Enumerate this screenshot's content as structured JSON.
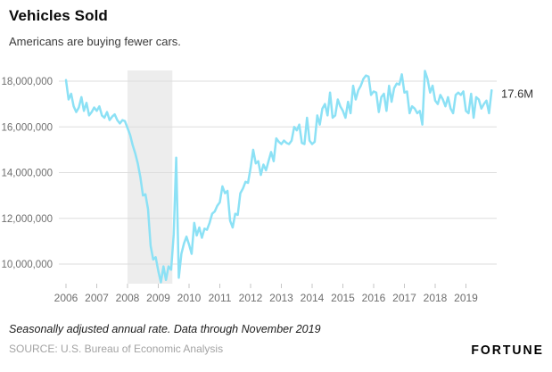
{
  "header": {
    "title": "Vehicles Sold",
    "subtitle": "Americans are buying fewer cars."
  },
  "footer": {
    "note": "Seasonally adjusted annual rate. Data through November 2019",
    "source": "SOURCE: U.S. Bureau of Economic Analysis",
    "brand": "FORTUNE"
  },
  "chart_data": {
    "type": "line",
    "title": "Vehicles Sold",
    "subtitle": "Americans are buying fewer cars.",
    "unit": "vehicles per year, seasonally adjusted annual rate",
    "x_start": "2006-01",
    "x_end": "2019-11",
    "x_tick_years": [
      2006,
      2007,
      2008,
      2009,
      2010,
      2011,
      2012,
      2013,
      2014,
      2015,
      2016,
      2017,
      2018,
      2019
    ],
    "y_ticks": [
      {
        "value": 18,
        "label": "18,000,000"
      },
      {
        "value": 16,
        "label": "16,000,000"
      },
      {
        "value": 14,
        "label": "14,000,000"
      },
      {
        "value": 12,
        "label": "12,000,000"
      },
      {
        "value": 10,
        "label": "10,000,000"
      }
    ],
    "ylim": [
      9.1,
      18.6
    ],
    "grid": true,
    "legend": "none",
    "recession_band": {
      "from": "2007-12",
      "to": "2009-06",
      "meaning": "U.S. recession"
    },
    "annotation": {
      "text": "17.6M",
      "value": 17.6,
      "position": "end-of-line"
    },
    "series": [
      {
        "name": "Vehicles sold (millions, SAAR)",
        "monthly_values_millions": [
          18.05,
          17.2,
          17.45,
          16.9,
          16.65,
          16.85,
          17.3,
          16.7,
          17.05,
          16.5,
          16.65,
          16.85,
          16.7,
          16.9,
          16.5,
          16.4,
          16.65,
          16.3,
          16.45,
          16.55,
          16.3,
          16.15,
          16.3,
          16.25,
          15.95,
          15.65,
          15.2,
          14.85,
          14.4,
          13.8,
          13.0,
          13.05,
          12.4,
          10.8,
          10.2,
          10.3,
          9.7,
          9.2,
          9.9,
          9.3,
          9.9,
          9.75,
          11.3,
          14.65,
          9.4,
          10.45,
          10.9,
          11.2,
          10.85,
          10.45,
          11.8,
          11.25,
          11.6,
          11.15,
          11.55,
          11.5,
          11.8,
          12.2,
          12.3,
          12.55,
          12.7,
          13.4,
          13.1,
          13.2,
          11.9,
          11.6,
          12.2,
          12.15,
          13.1,
          13.3,
          13.6,
          13.55,
          14.2,
          15.0,
          14.4,
          14.5,
          13.9,
          14.35,
          14.1,
          14.5,
          14.9,
          14.5,
          15.5,
          15.35,
          15.25,
          15.4,
          15.3,
          15.25,
          15.4,
          16.0,
          15.85,
          16.1,
          15.3,
          15.25,
          16.4,
          15.4,
          15.25,
          15.35,
          16.5,
          16.1,
          16.8,
          17.0,
          16.5,
          17.5,
          16.4,
          16.5,
          17.2,
          16.9,
          16.7,
          16.4,
          17.1,
          16.6,
          17.8,
          17.2,
          17.6,
          17.8,
          18.1,
          18.25,
          18.2,
          17.4,
          17.55,
          17.5,
          16.65,
          17.3,
          17.45,
          16.7,
          17.8,
          17.1,
          17.7,
          17.9,
          17.85,
          18.3,
          17.5,
          17.55,
          16.6,
          16.9,
          16.8,
          16.6,
          16.7,
          16.1,
          18.45,
          18.1,
          17.5,
          17.8,
          17.15,
          17.0,
          17.4,
          17.2,
          16.9,
          17.3,
          16.8,
          16.6,
          17.4,
          17.5,
          17.4,
          17.55,
          16.7,
          16.6,
          17.45,
          16.4,
          17.3,
          17.2,
          16.8,
          17.0,
          17.15,
          16.6,
          17.6
        ]
      }
    ],
    "colors": {
      "line": "#8CE1F5",
      "grid": "#DDDDDD",
      "band": "#EDEDED",
      "tick": "#C6C6C6",
      "axis_text": "#6F6F6F",
      "annotation": "#333333"
    }
  }
}
